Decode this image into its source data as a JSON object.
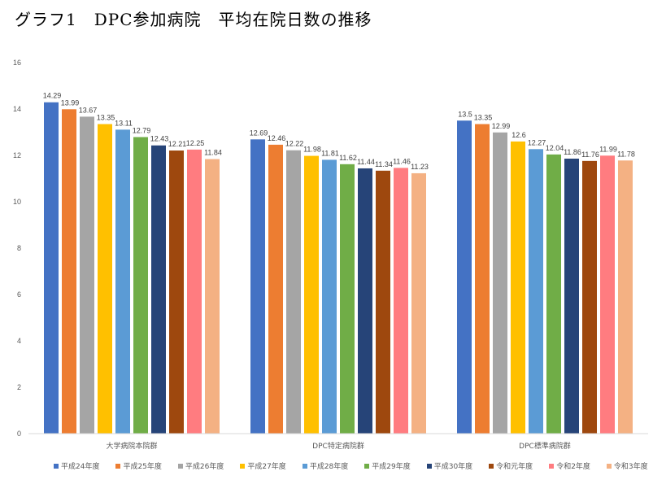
{
  "page_title": "グラフ1　DPC参加病院　平均在院日数の推移",
  "chart_data": {
    "type": "bar",
    "title": "グラフ1　DPC参加病院　平均在院日数の推移",
    "xlabel": "",
    "ylabel": "",
    "ylim": [
      0,
      16
    ],
    "yticks": [
      0,
      2,
      4,
      6,
      8,
      10,
      12,
      14,
      16
    ],
    "grid": false,
    "legend_position": "bottom",
    "categories": [
      "大学病院本院群",
      "DPC特定病院群",
      "DPC標準病院群"
    ],
    "series": [
      {
        "name": "平成24年度",
        "color": "#4472c4",
        "values": [
          14.29,
          12.69,
          13.5
        ]
      },
      {
        "name": "平成25年度",
        "color": "#ed7d31",
        "values": [
          13.99,
          12.46,
          13.35
        ]
      },
      {
        "name": "平成26年度",
        "color": "#a5a5a5",
        "values": [
          13.67,
          12.22,
          12.99
        ]
      },
      {
        "name": "平成27年度",
        "color": "#ffc000",
        "values": [
          13.35,
          11.98,
          12.6
        ]
      },
      {
        "name": "平成28年度",
        "color": "#5b9bd5",
        "values": [
          13.11,
          11.81,
          12.27
        ]
      },
      {
        "name": "平成29年度",
        "color": "#70ad47",
        "values": [
          12.79,
          11.62,
          12.04
        ]
      },
      {
        "name": "平成30年度",
        "color": "#264478",
        "values": [
          12.43,
          11.44,
          11.86
        ]
      },
      {
        "name": "令和元年度",
        "color": "#9e480e",
        "values": [
          12.21,
          11.34,
          11.76
        ]
      },
      {
        "name": "令和2年度",
        "color": "#ff7c80",
        "values": [
          12.25,
          11.46,
          11.99
        ]
      },
      {
        "name": "令和3年度",
        "color": "#f4b183",
        "values": [
          11.84,
          11.23,
          11.78
        ]
      }
    ]
  }
}
